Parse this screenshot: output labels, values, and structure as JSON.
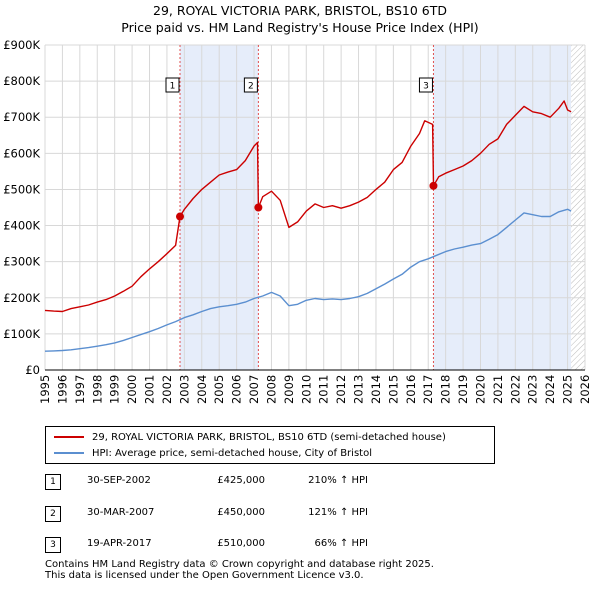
{
  "title_line1": "29, ROYAL VICTORIA PARK, BRISTOL, BS10 6TD",
  "title_line2": "Price paid vs. HM Land Registry's House Price Index (HPI)",
  "legend": {
    "property_label": "29, ROYAL VICTORIA PARK, BRISTOL, BS10 6TD (semi-detached house)",
    "hpi_label": "HPI: Average price, semi-detached house, City of Bristol"
  },
  "colors": {
    "property": "#cc0000",
    "hpi": "#5b8fd0",
    "shade": "#e6edfa",
    "grid": "#d8d8d8",
    "marker_line": "#e05050"
  },
  "sales": [
    {
      "num": "1",
      "date": "30-SEP-2002",
      "price": "£425,000",
      "hpi_change": "210% ↑ HPI"
    },
    {
      "num": "2",
      "date": "30-MAR-2007",
      "price": "£450,000",
      "hpi_change": "121% ↑ HPI"
    },
    {
      "num": "3",
      "date": "19-APR-2017",
      "price": "£510,000",
      "hpi_change": "66% ↑ HPI"
    }
  ],
  "footer": {
    "line1": "Contains HM Land Registry data © Crown copyright and database right 2025.",
    "line2": "This data is licensed under the Open Government Licence v3.0."
  },
  "chart_data": {
    "type": "line",
    "title": "Price paid vs. HM Land Registry's House Price Index (HPI)",
    "xlabel": "",
    "ylabel": "",
    "xlim": [
      1995,
      2026
    ],
    "ylim": [
      0,
      900000
    ],
    "x_ticks": [
      "1995",
      "1996",
      "1997",
      "1998",
      "1999",
      "2000",
      "2001",
      "2002",
      "2003",
      "2004",
      "2005",
      "2006",
      "2007",
      "2008",
      "2009",
      "2010",
      "2011",
      "2012",
      "2013",
      "2014",
      "2015",
      "2016",
      "2017",
      "2018",
      "2019",
      "2020",
      "2021",
      "2022",
      "2023",
      "2024",
      "2025",
      "2026"
    ],
    "y_ticks": [
      {
        "value": 0,
        "label": "£0"
      },
      {
        "value": 100000,
        "label": "£100K"
      },
      {
        "value": 200000,
        "label": "£200K"
      },
      {
        "value": 300000,
        "label": "£300K"
      },
      {
        "value": 400000,
        "label": "£400K"
      },
      {
        "value": 500000,
        "label": "£500K"
      },
      {
        "value": 600000,
        "label": "£600K"
      },
      {
        "value": 700000,
        "label": "£700K"
      },
      {
        "value": 800000,
        "label": "£800K"
      },
      {
        "value": 900000,
        "label": "£900K"
      }
    ],
    "shaded_ranges": [
      [
        2002.75,
        2007.25
      ],
      [
        2017.3,
        2025.2
      ]
    ],
    "hatched_from": 2025.2,
    "sale_markers": [
      {
        "label": "1",
        "x": 2002.75,
        "y": 425000
      },
      {
        "label": "2",
        "x": 2007.25,
        "y": 450000
      },
      {
        "label": "3",
        "x": 2017.3,
        "y": 510000
      }
    ],
    "series": [
      {
        "name": "29, ROYAL VICTORIA PARK, BRISTOL, BS10 6TD (semi-detached house)",
        "points": [
          [
            1995.0,
            165000
          ],
          [
            1995.5,
            163000
          ],
          [
            1996.0,
            162000
          ],
          [
            1996.5,
            170000
          ],
          [
            1997.0,
            175000
          ],
          [
            1997.5,
            180000
          ],
          [
            1998.0,
            188000
          ],
          [
            1998.5,
            195000
          ],
          [
            1999.0,
            205000
          ],
          [
            1999.5,
            218000
          ],
          [
            2000.0,
            232000
          ],
          [
            2000.5,
            258000
          ],
          [
            2001.0,
            280000
          ],
          [
            2001.5,
            300000
          ],
          [
            2002.0,
            322000
          ],
          [
            2002.5,
            345000
          ],
          [
            2002.75,
            425000
          ],
          [
            2003.0,
            445000
          ],
          [
            2003.5,
            475000
          ],
          [
            2004.0,
            500000
          ],
          [
            2004.5,
            520000
          ],
          [
            2005.0,
            540000
          ],
          [
            2005.5,
            548000
          ],
          [
            2006.0,
            555000
          ],
          [
            2006.5,
            580000
          ],
          [
            2007.0,
            620000
          ],
          [
            2007.2,
            630000
          ],
          [
            2007.25,
            450000
          ],
          [
            2007.5,
            480000
          ],
          [
            2008.0,
            495000
          ],
          [
            2008.5,
            470000
          ],
          [
            2009.0,
            395000
          ],
          [
            2009.5,
            410000
          ],
          [
            2010.0,
            440000
          ],
          [
            2010.5,
            460000
          ],
          [
            2011.0,
            450000
          ],
          [
            2011.5,
            455000
          ],
          [
            2012.0,
            448000
          ],
          [
            2012.5,
            455000
          ],
          [
            2013.0,
            465000
          ],
          [
            2013.5,
            478000
          ],
          [
            2014.0,
            500000
          ],
          [
            2014.5,
            520000
          ],
          [
            2015.0,
            555000
          ],
          [
            2015.5,
            575000
          ],
          [
            2016.0,
            620000
          ],
          [
            2016.5,
            655000
          ],
          [
            2016.8,
            690000
          ],
          [
            2017.25,
            680000
          ],
          [
            2017.3,
            510000
          ],
          [
            2017.6,
            535000
          ],
          [
            2018.0,
            545000
          ],
          [
            2018.5,
            555000
          ],
          [
            2019.0,
            565000
          ],
          [
            2019.5,
            580000
          ],
          [
            2020.0,
            600000
          ],
          [
            2020.5,
            625000
          ],
          [
            2021.0,
            640000
          ],
          [
            2021.5,
            680000
          ],
          [
            2022.0,
            705000
          ],
          [
            2022.5,
            730000
          ],
          [
            2023.0,
            715000
          ],
          [
            2023.5,
            710000
          ],
          [
            2024.0,
            700000
          ],
          [
            2024.5,
            725000
          ],
          [
            2024.8,
            745000
          ],
          [
            2025.0,
            720000
          ],
          [
            2025.2,
            715000
          ]
        ]
      },
      {
        "name": "HPI: Average price, semi-detached house, City of Bristol",
        "points": [
          [
            1995.0,
            52000
          ],
          [
            1995.5,
            53000
          ],
          [
            1996.0,
            54000
          ],
          [
            1996.5,
            56000
          ],
          [
            1997.0,
            59000
          ],
          [
            1997.5,
            62000
          ],
          [
            1998.0,
            66000
          ],
          [
            1998.5,
            70000
          ],
          [
            1999.0,
            75000
          ],
          [
            1999.5,
            82000
          ],
          [
            2000.0,
            90000
          ],
          [
            2000.5,
            98000
          ],
          [
            2001.0,
            106000
          ],
          [
            2001.5,
            115000
          ],
          [
            2002.0,
            125000
          ],
          [
            2002.5,
            134000
          ],
          [
            2003.0,
            145000
          ],
          [
            2003.5,
            153000
          ],
          [
            2004.0,
            162000
          ],
          [
            2004.5,
            170000
          ],
          [
            2005.0,
            175000
          ],
          [
            2005.5,
            178000
          ],
          [
            2006.0,
            182000
          ],
          [
            2006.5,
            188000
          ],
          [
            2007.0,
            198000
          ],
          [
            2007.5,
            205000
          ],
          [
            2008.0,
            215000
          ],
          [
            2008.5,
            205000
          ],
          [
            2009.0,
            178000
          ],
          [
            2009.5,
            182000
          ],
          [
            2010.0,
            193000
          ],
          [
            2010.5,
            198000
          ],
          [
            2011.0,
            195000
          ],
          [
            2011.5,
            197000
          ],
          [
            2012.0,
            195000
          ],
          [
            2012.5,
            198000
          ],
          [
            2013.0,
            203000
          ],
          [
            2013.5,
            212000
          ],
          [
            2014.0,
            225000
          ],
          [
            2014.5,
            238000
          ],
          [
            2015.0,
            252000
          ],
          [
            2015.5,
            265000
          ],
          [
            2016.0,
            285000
          ],
          [
            2016.5,
            300000
          ],
          [
            2017.0,
            308000
          ],
          [
            2017.5,
            318000
          ],
          [
            2018.0,
            328000
          ],
          [
            2018.5,
            335000
          ],
          [
            2019.0,
            340000
          ],
          [
            2019.5,
            346000
          ],
          [
            2020.0,
            350000
          ],
          [
            2020.5,
            362000
          ],
          [
            2021.0,
            375000
          ],
          [
            2021.5,
            395000
          ],
          [
            2022.0,
            415000
          ],
          [
            2022.5,
            435000
          ],
          [
            2023.0,
            430000
          ],
          [
            2023.5,
            425000
          ],
          [
            2024.0,
            425000
          ],
          [
            2024.5,
            438000
          ],
          [
            2025.0,
            445000
          ],
          [
            2025.2,
            440000
          ]
        ]
      }
    ]
  }
}
